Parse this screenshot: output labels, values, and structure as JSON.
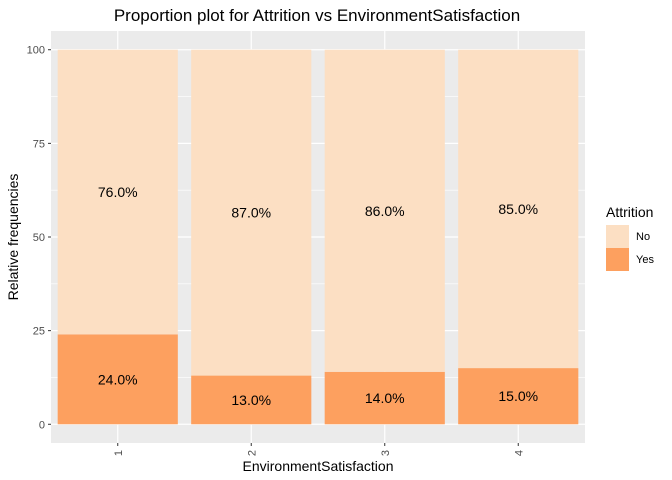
{
  "chart_data": {
    "type": "bar",
    "stacked": true,
    "title": "Proportion plot for Attrition vs EnvironmentSatisfaction",
    "xlabel": "EnvironmentSatisfaction",
    "ylabel": "Relative frequencies",
    "categories": [
      "1",
      "2",
      "3",
      "4"
    ],
    "series": [
      {
        "name": "Yes",
        "color": "#FDA05F",
        "values": [
          24.0,
          13.0,
          14.0,
          15.0
        ],
        "labels": [
          "24.0%",
          "13.0%",
          "14.0%",
          "15.0%"
        ]
      },
      {
        "name": "No",
        "color": "#FCDFC3",
        "values": [
          76.0,
          87.0,
          86.0,
          85.0
        ],
        "labels": [
          "76.0%",
          "87.0%",
          "86.0%",
          "85.0%"
        ]
      }
    ],
    "ylim": [
      0,
      100
    ],
    "yticks": [
      0,
      25,
      50,
      75,
      100
    ],
    "ytick_labels": [
      "0",
      "25",
      "50",
      "75",
      "100"
    ],
    "grid": true,
    "panel_background": "#EBEBEB",
    "legend": {
      "title": "Attrition",
      "position": "right",
      "entries": [
        {
          "label": "No",
          "color": "#FCDFC3"
        },
        {
          "label": "Yes",
          "color": "#FDA05F"
        }
      ]
    }
  }
}
